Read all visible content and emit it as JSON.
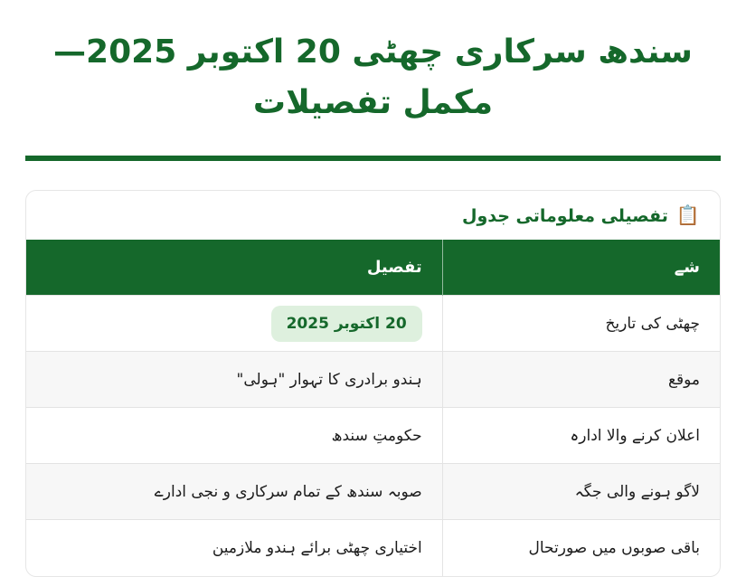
{
  "page": {
    "title": "سندھ سرکاری چھٹی 20 اکتوبر 2025—مکمل تفصیلات"
  },
  "info_card": {
    "header": {
      "icon": "📋",
      "title": "تفصیلی معلوماتی جدول"
    },
    "table": {
      "headers": {
        "item": "شے",
        "detail": "تفصیل"
      },
      "rows": [
        {
          "item": "چھٹی کی تاریخ",
          "detail": "20 اکتوبر 2025"
        },
        {
          "item": "موقع",
          "detail": "ہندو برادری کا تہوار \"ہولی\""
        },
        {
          "item": "اعلان کرنے والا ادارہ",
          "detail": "حکومتِ سندھ"
        },
        {
          "item": "لاگو ہونے والی جگہ",
          "detail": "صوبہ سندھ کے تمام سرکاری و نجی ادارے"
        },
        {
          "item": "باقی صوبوں میں صورتحال",
          "detail": "اختیاری چھٹی برائے ہندو ملازمین"
        }
      ]
    }
  },
  "colors": {
    "primary_green": "#15682b",
    "badge_background": "#def0de",
    "badge_text": "#15682b",
    "row_alt_background": "#f7f7f7"
  }
}
